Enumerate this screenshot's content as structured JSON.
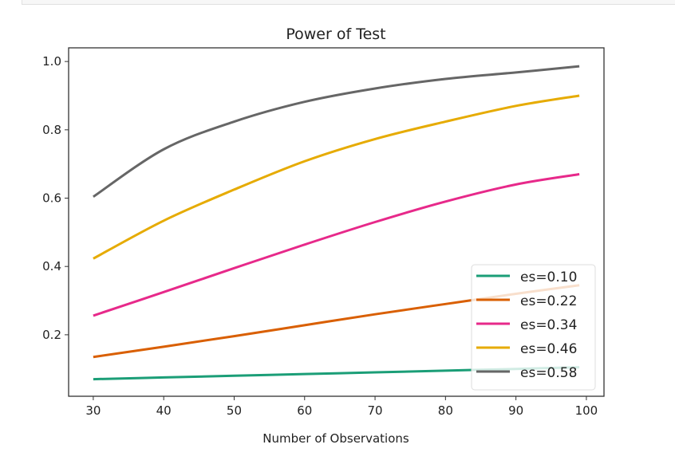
{
  "chart_data": {
    "type": "line",
    "title": "Power of Test",
    "xlabel": "Number of Observations",
    "ylabel": "",
    "xlim": [
      26.5,
      102.5
    ],
    "ylim": [
      0.02,
      1.04
    ],
    "xticks": [
      30,
      40,
      50,
      60,
      70,
      80,
      90,
      100
    ],
    "xtick_labels": [
      "30",
      "40",
      "50",
      "60",
      "70",
      "80",
      "90",
      "100"
    ],
    "yticks": [
      0.2,
      0.4,
      0.6,
      0.8,
      1.0
    ],
    "ytick_labels": [
      "0.2",
      "0.4",
      "0.6",
      "0.8",
      "1.0"
    ],
    "grid": false,
    "legend_position": "lower-right",
    "x": [
      30,
      40,
      50,
      60,
      70,
      80,
      90,
      99
    ],
    "series": [
      {
        "name": "es=0.10",
        "color": "#1b9e77",
        "values": [
          0.07,
          0.075,
          0.08,
          0.085,
          0.09,
          0.095,
          0.1,
          0.105
        ]
      },
      {
        "name": "es=0.22",
        "color": "#d95f02",
        "values": [
          0.135,
          0.165,
          0.196,
          0.228,
          0.26,
          0.29,
          0.32,
          0.345
        ]
      },
      {
        "name": "es=0.34",
        "color": "#e7298a",
        "values": [
          0.256,
          0.325,
          0.395,
          0.464,
          0.53,
          0.59,
          0.64,
          0.67
        ]
      },
      {
        "name": "es=0.46",
        "color": "#e6ab02",
        "values": [
          0.423,
          0.534,
          0.625,
          0.708,
          0.773,
          0.824,
          0.87,
          0.9
        ]
      },
      {
        "name": "es=0.58",
        "color": "#666666",
        "values": [
          0.604,
          0.743,
          0.824,
          0.882,
          0.921,
          0.949,
          0.968,
          0.986
        ]
      }
    ]
  }
}
